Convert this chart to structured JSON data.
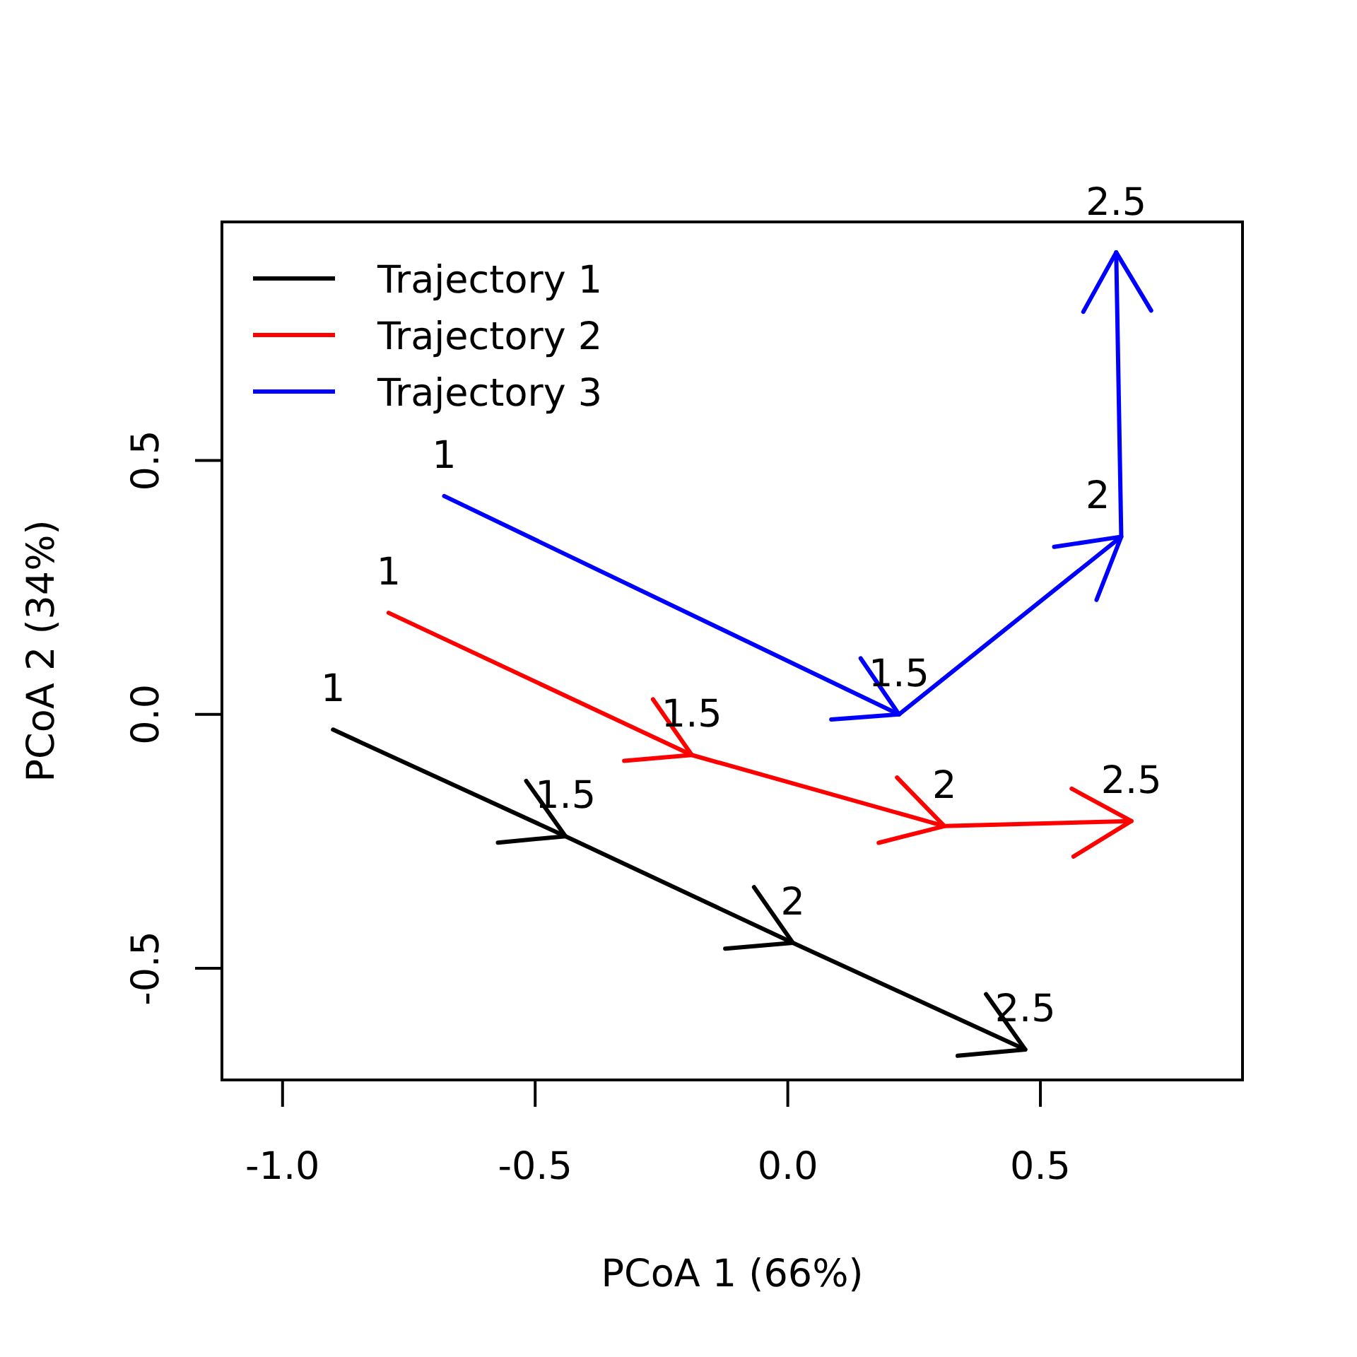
{
  "chart_data": {
    "type": "line",
    "xlabel": "PCoA 1 (66%)",
    "ylabel": "PCoA 2 (34%)",
    "xlim": [
      -1.12,
      0.9
    ],
    "ylim": [
      -0.72,
      0.97
    ],
    "xticks": [
      {
        "value": -1,
        "label": "-1.0"
      },
      {
        "value": -0.5,
        "label": "-0.5"
      },
      {
        "value": 0,
        "label": "0.0"
      },
      {
        "value": 0.5,
        "label": "0.5"
      }
    ],
    "yticks": [
      {
        "value": -0.5,
        "label": "-0.5"
      },
      {
        "value": 0,
        "label": "0.0"
      },
      {
        "value": 0.5,
        "label": "0.5"
      }
    ],
    "series": [
      {
        "name": "Trajectory 1",
        "color": "#000000",
        "x": [
          -0.9,
          -0.44,
          0.01,
          0.47
        ],
        "values": [
          -0.03,
          -0.24,
          -0.45,
          -0.66
        ]
      },
      {
        "name": "Trajectory 2",
        "color": "#ff0000",
        "x": [
          -0.79,
          -0.19,
          0.31,
          0.68
        ],
        "values": [
          0.2,
          -0.08,
          -0.22,
          -0.21
        ]
      },
      {
        "name": "Trajectory 3",
        "color": "#0000ff",
        "x": [
          -0.68,
          0.22,
          0.66,
          0.65
        ],
        "values": [
          0.43,
          0.0,
          0.35,
          0.91
        ]
      }
    ],
    "annotations": [
      {
        "text": "1",
        "x": -0.9,
        "y": -0.03
      },
      {
        "text": "1.5",
        "x": -0.44,
        "y": -0.24
      },
      {
        "text": "2",
        "x": 0.01,
        "y": -0.45
      },
      {
        "text": "2.5",
        "x": 0.47,
        "y": -0.66
      },
      {
        "text": "1",
        "x": -0.79,
        "y": 0.2
      },
      {
        "text": "1.5",
        "x": -0.19,
        "y": -0.08
      },
      {
        "text": "2",
        "x": 0.31,
        "y": -0.22
      },
      {
        "text": "2.5",
        "x": 0.68,
        "y": -0.21
      },
      {
        "text": "1",
        "x": -0.68,
        "y": 0.43
      },
      {
        "text": "1.5",
        "x": 0.22,
        "y": 0.0
      },
      {
        "text": "2",
        "x": 0.66,
        "y": 0.35
      },
      {
        "text": "2.5",
        "x": 0.65,
        "y": 0.91
      }
    ],
    "legend": "top left",
    "grid": false
  }
}
